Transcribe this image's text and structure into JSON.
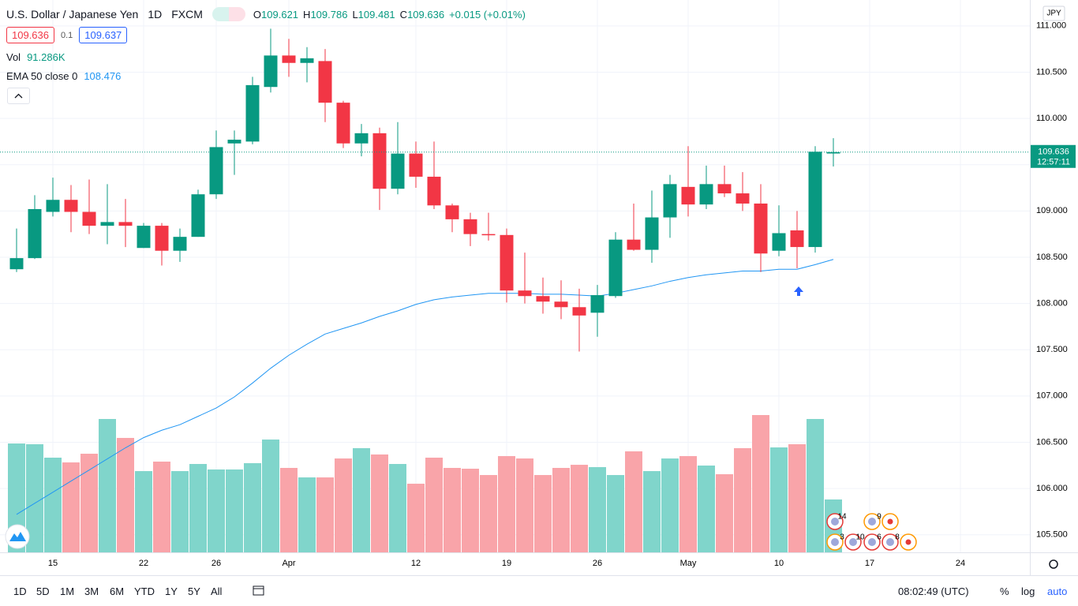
{
  "chart_data": {
    "type": "candlestick",
    "title": "U.S. Dollar / Japanese Yen",
    "interval": "1D",
    "source": "FXCM",
    "ohlc_labels": [
      "O",
      "H",
      "L",
      "C"
    ],
    "change": "+0.015 (+0.01%)",
    "quote": {
      "bid": 109.636,
      "spread": 0.1,
      "ask": 109.637
    },
    "currency": "JPY",
    "countdown": "12:57:11",
    "up_color": "#089981",
    "down_color": "#f23645",
    "categories": [
      null,
      null,
      "15",
      null,
      null,
      null,
      null,
      "22",
      null,
      null,
      null,
      "26",
      null,
      null,
      null,
      "Apr",
      null,
      null,
      null,
      null,
      null,
      null,
      "12",
      null,
      null,
      null,
      null,
      "19",
      null,
      null,
      null,
      null,
      "26",
      null,
      null,
      null,
      null,
      "May",
      null,
      null,
      null,
      null,
      "10",
      null,
      null,
      null,
      null,
      "17",
      null,
      null,
      null,
      null,
      "24"
    ],
    "open": [
      108.37,
      108.49,
      108.99,
      109.12,
      108.99,
      108.84,
      108.88,
      108.6,
      108.84,
      108.57,
      108.72,
      109.18,
      109.73,
      109.75,
      110.34,
      110.68,
      110.6,
      110.62,
      110.17,
      109.73,
      109.84,
      109.24,
      109.62,
      109.37,
      109.06,
      108.91,
      108.75,
      108.74,
      108.14,
      108.08,
      108.02,
      107.96,
      107.9,
      108.08,
      108.69,
      108.58,
      108.93,
      109.26,
      109.07,
      109.29,
      109.19,
      109.08,
      108.57,
      108.79,
      108.61,
      109.621,
      null,
      null,
      null,
      null,
      null,
      null,
      null
    ],
    "high": [
      108.81,
      109.17,
      109.36,
      109.28,
      109.34,
      109.29,
      109.13,
      108.87,
      108.87,
      108.81,
      109.23,
      109.87,
      109.87,
      110.45,
      110.97,
      110.86,
      110.77,
      110.75,
      110.19,
      109.94,
      109.9,
      109.96,
      109.75,
      109.75,
      109.08,
      108.98,
      108.98,
      108.81,
      108.55,
      108.28,
      108.25,
      108.16,
      108.2,
      108.77,
      109.08,
      109.22,
      109.39,
      109.7,
      109.49,
      109.49,
      109.42,
      109.29,
      109.06,
      109.0,
      109.7,
      109.786,
      null,
      null,
      null,
      null,
      null,
      null,
      null
    ],
    "low": [
      108.34,
      108.48,
      108.94,
      108.77,
      108.75,
      108.64,
      108.61,
      108.6,
      108.41,
      108.45,
      108.72,
      109.13,
      109.39,
      109.72,
      110.28,
      110.45,
      110.39,
      109.96,
      109.68,
      109.59,
      109.01,
      109.18,
      109.25,
      109.02,
      108.77,
      108.62,
      108.68,
      108.01,
      108.0,
      107.89,
      107.83,
      107.48,
      107.64,
      108.06,
      108.57,
      108.44,
      108.71,
      108.94,
      109.02,
      109.15,
      109.0,
      108.34,
      108.51,
      108.38,
      108.55,
      109.481,
      null,
      null,
      null,
      null,
      null,
      null,
      null
    ],
    "close": [
      108.49,
      109.02,
      109.12,
      108.99,
      108.84,
      108.88,
      108.84,
      108.84,
      108.57,
      108.72,
      109.18,
      109.69,
      109.77,
      110.36,
      110.68,
      110.6,
      110.65,
      110.17,
      109.73,
      109.84,
      109.24,
      109.62,
      109.37,
      109.06,
      108.91,
      108.75,
      108.74,
      108.14,
      108.08,
      108.02,
      107.96,
      107.87,
      108.09,
      108.69,
      108.58,
      108.93,
      109.29,
      109.07,
      109.29,
      109.19,
      109.08,
      108.54,
      108.76,
      108.61,
      109.64,
      109.636,
      null,
      null,
      null,
      null,
      null,
      null,
      null
    ],
    "volume": {
      "name": "Vol",
      "legend_value_label": "91.286K",
      "up_color": "#80d5cb",
      "down_color": "#f9a4a9",
      "values": [
        188.0,
        186.7,
        163.5,
        155.3,
        170.3,
        230.3,
        197.6,
        140.3,
        156.7,
        140.3,
        152.6,
        143.1,
        143.1,
        154.0,
        194.8,
        145.8,
        129.4,
        129.4,
        162.1,
        179.9,
        169.0,
        152.6,
        118.5,
        163.5,
        145.8,
        144.4,
        133.5,
        166.2,
        162.1,
        133.5,
        145.8,
        151.2,
        147.2,
        133.5,
        174.4,
        140.3,
        162.1,
        166.2,
        149.9,
        134.9,
        179.9,
        237.1,
        181.2,
        186.7,
        230.3,
        91.286,
        null,
        null,
        null,
        null,
        null,
        null,
        null
      ]
    },
    "ema": {
      "name": "EMA 50 close 0",
      "color": "#2196f3",
      "values": [
        105.72,
        105.84,
        105.96,
        106.08,
        106.2,
        106.32,
        106.44,
        106.55,
        106.63,
        106.69,
        106.78,
        106.87,
        106.99,
        107.14,
        107.3,
        107.44,
        107.56,
        107.67,
        107.73,
        107.79,
        107.86,
        107.92,
        107.99,
        108.04,
        108.07,
        108.09,
        108.11,
        108.11,
        108.11,
        108.1,
        108.1,
        108.09,
        108.08,
        108.11,
        108.15,
        108.19,
        108.24,
        108.28,
        108.31,
        108.33,
        108.35,
        108.35,
        108.37,
        108.37,
        108.42,
        108.476,
        null,
        null,
        null,
        null,
        null,
        null,
        null
      ]
    },
    "ylim": [
      105.31,
      111.28
    ],
    "yticks": [
      {
        "value": 105.5,
        "label": "105.500"
      },
      {
        "value": 106,
        "label": "106.000"
      },
      {
        "value": 106.5,
        "label": "106.500"
      },
      {
        "value": 107,
        "label": "107.000"
      },
      {
        "value": 107.5,
        "label": "107.500"
      },
      {
        "value": 108,
        "label": "108.000"
      },
      {
        "value": 108.5,
        "label": "108.500"
      },
      {
        "value": 109,
        "label": "109.000"
      },
      {
        "value": 109.5,
        "label": "109.500"
      },
      {
        "value": 110,
        "label": "110.000"
      },
      {
        "value": 110.5,
        "label": "110.500"
      },
      {
        "value": 111,
        "label": "111.000"
      }
    ],
    "grid": true,
    "event_badges": [
      "14",
      "9",
      "3",
      "10",
      "6",
      "8"
    ]
  },
  "toolbar": {
    "ranges": [
      "1D",
      "5D",
      "1M",
      "3M",
      "6M",
      "YTD",
      "1Y",
      "5Y",
      "All"
    ],
    "clock": "08:02:49 (UTC)",
    "options": [
      "%",
      "log",
      "auto"
    ]
  }
}
